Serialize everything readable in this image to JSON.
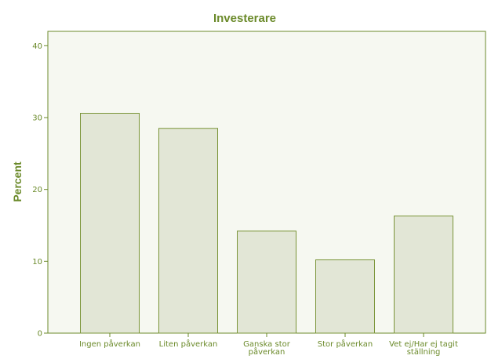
{
  "colors": {
    "accent": "#6b8a2a",
    "plot_background": "#f6f8f1",
    "bar_fill": "#e2e6d6",
    "bar_stroke": "#7a9438"
  },
  "chart_data": {
    "type": "bar",
    "title": "Investerare",
    "xlabel": "",
    "ylabel": "Percent",
    "ylim": [
      0,
      42
    ],
    "yticks": [
      "0",
      "10",
      "20",
      "30",
      "40"
    ],
    "grid": false,
    "categories": [
      [
        "Ingen påverkan"
      ],
      [
        "Liten påverkan"
      ],
      [
        "Ganska stor",
        "påverkan"
      ],
      [
        "Stor påverkan"
      ],
      [
        "Vet ej/Har ej tagit",
        "ställning"
      ]
    ],
    "values": [
      30.6,
      28.5,
      14.2,
      10.2,
      16.3
    ]
  }
}
